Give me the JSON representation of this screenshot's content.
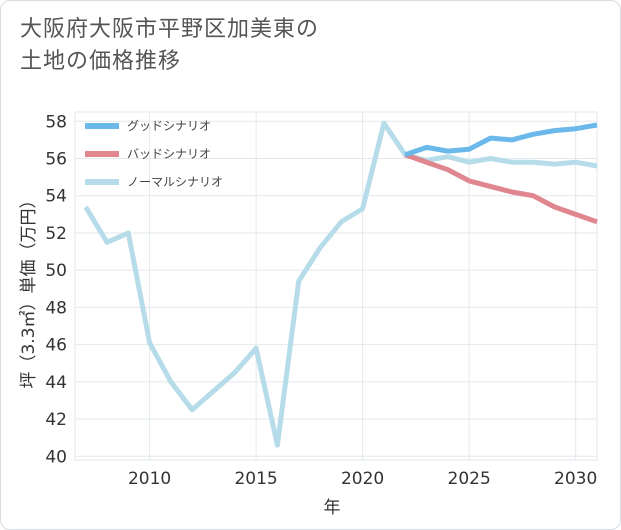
{
  "title_lines": [
    "大阪府大阪市平野区加美東の",
    "土地の価格推移"
  ],
  "chart_data": {
    "type": "line",
    "title": "大阪府大阪市平野区加美東の土地の価格推移",
    "xlabel": "年",
    "ylabel": "坪（3.3㎡）単価（万円）",
    "xlim": [
      2006.5,
      2031
    ],
    "ylim": [
      39.8,
      58.5
    ],
    "x_ticks": [
      2010,
      2015,
      2020,
      2025,
      2030
    ],
    "y_ticks": [
      40,
      42,
      44,
      46,
      48,
      50,
      52,
      54,
      56,
      58
    ],
    "grid": true,
    "legend_position": "top-left",
    "series": [
      {
        "name": "グッドシナリオ",
        "color": "#6bb8ea",
        "points": [
          [
            2022,
            56.2
          ],
          [
            2023,
            56.6
          ],
          [
            2024,
            56.4
          ],
          [
            2025,
            56.5
          ],
          [
            2026,
            57.1
          ],
          [
            2027,
            57.0
          ],
          [
            2028,
            57.3
          ],
          [
            2029,
            57.5
          ],
          [
            2030,
            57.6
          ],
          [
            2031,
            57.8
          ]
        ]
      },
      {
        "name": "バッドシナリオ",
        "color": "#e0868f",
        "points": [
          [
            2022,
            56.2
          ],
          [
            2023,
            55.8
          ],
          [
            2024,
            55.4
          ],
          [
            2025,
            54.8
          ],
          [
            2026,
            54.5
          ],
          [
            2027,
            54.2
          ],
          [
            2028,
            54.0
          ],
          [
            2029,
            53.4
          ],
          [
            2030,
            53.0
          ],
          [
            2031,
            52.6
          ]
        ]
      },
      {
        "name": "ノーマルシナリオ",
        "color": "#b7dce9",
        "points": [
          [
            2007,
            53.4
          ],
          [
            2008,
            51.5
          ],
          [
            2009,
            52.0
          ],
          [
            2010,
            46.1
          ],
          [
            2011,
            44.0
          ],
          [
            2012,
            42.5
          ],
          [
            2013,
            43.5
          ],
          [
            2014,
            44.5
          ],
          [
            2015,
            45.8
          ],
          [
            2016,
            40.6
          ],
          [
            2017,
            49.4
          ],
          [
            2018,
            51.2
          ],
          [
            2019,
            52.6
          ],
          [
            2020,
            53.3
          ],
          [
            2021,
            57.9
          ],
          [
            2022,
            56.2
          ],
          [
            2023,
            55.9
          ],
          [
            2024,
            56.1
          ],
          [
            2025,
            55.8
          ],
          [
            2026,
            56.0
          ],
          [
            2027,
            55.8
          ],
          [
            2028,
            55.8
          ],
          [
            2029,
            55.7
          ],
          [
            2030,
            55.8
          ],
          [
            2031,
            55.6
          ]
        ]
      }
    ]
  }
}
